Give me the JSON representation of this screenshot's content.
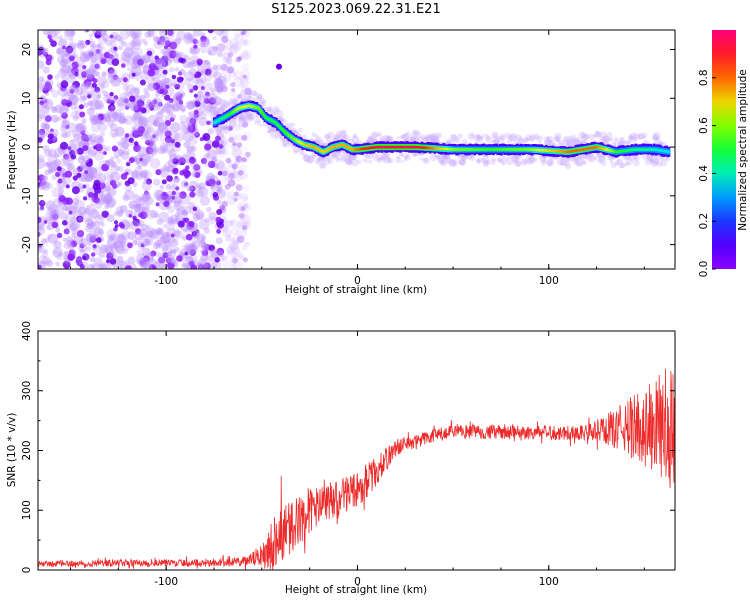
{
  "title": "S125.2023.069.22.31.E21",
  "chart_data": [
    {
      "type": "heatmap",
      "xlabel": "Height of straight line (km)",
      "ylabel": "Frequency (Hz)",
      "xlim": [
        -167,
        166
      ],
      "ylim": [
        -25,
        24
      ],
      "xticks": [
        -100,
        0,
        100
      ],
      "yticks": [
        -20,
        -10,
        0,
        10,
        20
      ],
      "colorbar": {
        "label": "Normalized spectral amplitude",
        "range": [
          0,
          1
        ],
        "ticks": [
          "0.0",
          "0.2",
          "0.4",
          "0.6",
          "0.8"
        ]
      },
      "noise_region": {
        "x_from": -167,
        "x_to": -63,
        "amplitude": 0.15
      },
      "trace": {
        "x": [
          -75,
          -68,
          -62,
          -57,
          -52,
          -48,
          -43,
          -38,
          -33,
          -28,
          -23,
          -18,
          -13,
          -8,
          -3,
          0,
          10,
          30,
          50,
          70,
          90,
          110,
          125,
          135,
          145,
          155,
          163
        ],
        "y": [
          5,
          6.5,
          8,
          8.5,
          8,
          6,
          5,
          3,
          1.5,
          0.5,
          0,
          -1,
          0,
          0.5,
          -0.5,
          -0.5,
          0,
          0,
          -0.5,
          -0.5,
          -0.5,
          -1,
          0,
          -1,
          -0.5,
          -0.5,
          -1
        ],
        "amplitude": [
          0.35,
          0.5,
          0.65,
          0.65,
          0.6,
          0.5,
          0.5,
          0.55,
          0.6,
          0.7,
          0.75,
          0.7,
          0.75,
          0.75,
          0.75,
          0.8,
          0.95,
          0.95,
          0.6,
          0.55,
          0.6,
          0.8,
          0.8,
          0.55,
          0.45,
          0.4,
          0.35
        ]
      }
    },
    {
      "type": "line",
      "xlabel": "Height of straight line (km)",
      "ylabel": "SNR (10 * v/v)",
      "xlim": [
        -167,
        166
      ],
      "ylim": [
        0,
        400
      ],
      "xticks": [
        -100,
        0,
        100
      ],
      "yticks": [
        0,
        100,
        200,
        300,
        400
      ],
      "series": [
        {
          "color": "#ee2b2b",
          "envelope_x": [
            -167,
            -120,
            -80,
            -58,
            -50,
            -45,
            -40,
            -35,
            -30,
            -25,
            -20,
            -15,
            -10,
            -5,
            0,
            5,
            10,
            15,
            20,
            30,
            40,
            50,
            60,
            80,
            100,
            120,
            130,
            140,
            150,
            160,
            166
          ],
          "envelope_mean": [
            10,
            12,
            12,
            14,
            25,
            45,
            60,
            70,
            85,
            100,
            105,
            110,
            120,
            130,
            135,
            150,
            165,
            185,
            205,
            215,
            225,
            230,
            232,
            230,
            230,
            230,
            235,
            238,
            240,
            240,
            235
          ],
          "envelope_noise": [
            5,
            6,
            6,
            8,
            20,
            40,
            55,
            45,
            40,
            40,
            35,
            35,
            30,
            30,
            30,
            30,
            25,
            20,
            15,
            12,
            12,
            12,
            12,
            12,
            12,
            14,
            25,
            45,
            70,
            95,
            110
          ]
        }
      ]
    }
  ]
}
